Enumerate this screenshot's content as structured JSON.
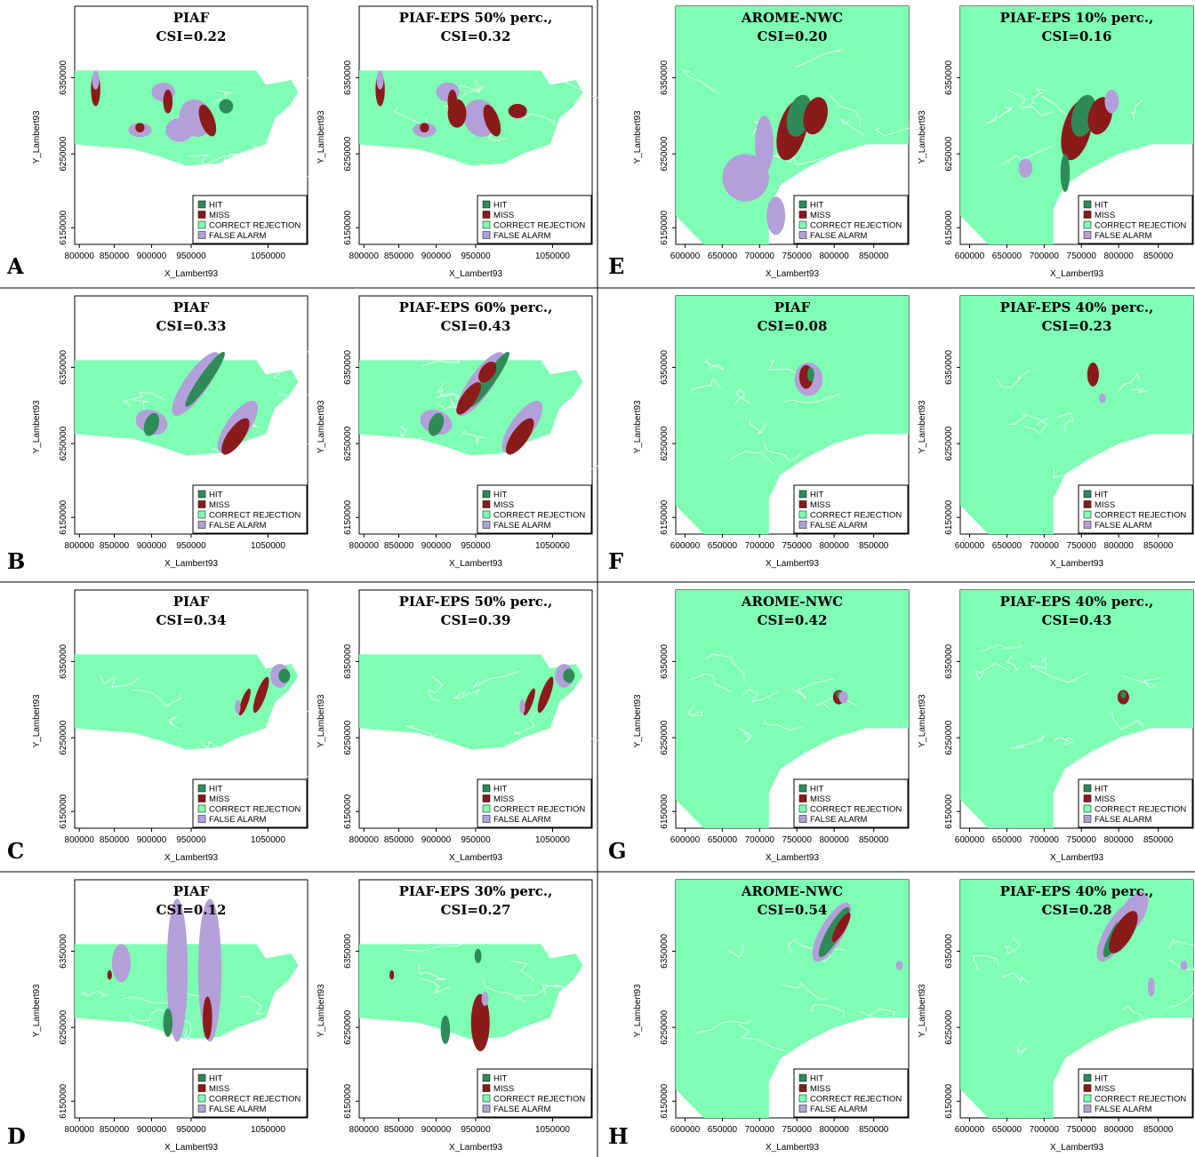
{
  "colors": {
    "hit": "#2e8b57",
    "miss": "#8b1a1a",
    "correct_rejection": "#7fffb4",
    "false_alarm": "#b3a0da",
    "river": "#ffffff",
    "frame": "#000000"
  },
  "legend": {
    "hit": "HIT",
    "miss": "MISS",
    "correct_rejection": "CORRECT REJECTION",
    "false_alarm": "FALSE ALARM"
  },
  "axes": {
    "xlabel": "X_Lambert93",
    "ylabel": "Y_Lambert93",
    "left_region": {
      "x_ticks": [
        "800000",
        "850000",
        "900000",
        "950000",
        "1050000"
      ],
      "y_ticks": [
        "6350000",
        "6250000",
        "6150000"
      ]
    },
    "right_region": {
      "x_ticks": [
        "600000",
        "650000",
        "700000",
        "750000",
        "800000",
        "850000"
      ],
      "y_ticks": [
        "6350000",
        "6250000",
        "6150000"
      ]
    }
  },
  "panels": [
    {
      "label": "A",
      "region": "left_region",
      "maps": [
        {
          "title": "PIAF",
          "csi": "CSI=0.22"
        },
        {
          "title": "PIAF-EPS  50% perc.,",
          "csi": "CSI=0.32"
        }
      ]
    },
    {
      "label": "B",
      "region": "left_region",
      "maps": [
        {
          "title": "PIAF",
          "csi": "CSI=0.33"
        },
        {
          "title": "PIAF-EPS  60% perc.,",
          "csi": "CSI=0.43"
        }
      ]
    },
    {
      "label": "C",
      "region": "left_region",
      "maps": [
        {
          "title": "PIAF",
          "csi": "CSI=0.34"
        },
        {
          "title": "PIAF-EPS  50% perc.,",
          "csi": "CSI=0.39"
        }
      ]
    },
    {
      "label": "D",
      "region": "left_region",
      "maps": [
        {
          "title": "PIAF",
          "csi": "CSI=0.12"
        },
        {
          "title": "PIAF-EPS  30% perc.,",
          "csi": "CSI=0.27"
        }
      ]
    },
    {
      "label": "E",
      "region": "right_region",
      "maps": [
        {
          "title": "AROME-NWC",
          "csi": "CSI=0.20"
        },
        {
          "title": "PIAF-EPS  10% perc.,",
          "csi": "CSI=0.16"
        }
      ]
    },
    {
      "label": "F",
      "region": "right_region",
      "maps": [
        {
          "title": "PIAF",
          "csi": "CSI=0.08"
        },
        {
          "title": "PIAF-EPS  40% perc.,",
          "csi": "CSI=0.23"
        }
      ]
    },
    {
      "label": "G",
      "region": "right_region",
      "maps": [
        {
          "title": "AROME-NWC",
          "csi": "CSI=0.42"
        },
        {
          "title": "PIAF-EPS  40% perc.,",
          "csi": "CSI=0.43"
        }
      ]
    },
    {
      "label": "H",
      "region": "right_region",
      "maps": [
        {
          "title": "AROME-NWC",
          "csi": "CSI=0.54"
        },
        {
          "title": "PIAF-EPS  40% perc.,",
          "csi": "CSI=0.28"
        }
      ]
    }
  ]
}
